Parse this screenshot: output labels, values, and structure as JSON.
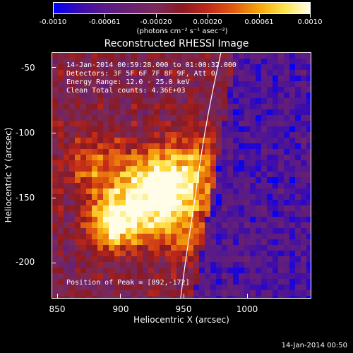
{
  "colorbar": {
    "tick_labels": [
      "-0.0010",
      "-0.00061",
      "-0.00020",
      "0.00020",
      "0.00061",
      "0.0010"
    ],
    "units": "(photons cm⁻² s⁻¹ asec⁻²)",
    "colors": [
      "#0000ff",
      "#3a0bb0",
      "#5a1b86",
      "#6a2070",
      "#7a2a5a",
      "#8a1a22",
      "#c0281a",
      "#e05a10",
      "#f5a40a",
      "#ffe34a",
      "#fffde8"
    ]
  },
  "plot": {
    "title": "Reconstructed RHESSI Image",
    "annotations": {
      "time": "14-Jan-2014 00:59:28.000 to 01:00:32.000",
      "detectors": "Detectors: 3F 5F 6F 7F 8F 9F, Att 0",
      "energy": "Energy Range: 12.0 - 25.0 keV",
      "method": "Clean    Total counts: 4.36E+03",
      "peak": "Position of Peak = [892,-172]"
    },
    "xlabel": "Heliocentric X (arcsec)",
    "ylabel": "Heliocentric Y (arcsec)",
    "x_ticks": [
      "850",
      "900",
      "950",
      "1000"
    ],
    "y_ticks": [
      "-50",
      "-100",
      "-150",
      "-200"
    ],
    "xlim": [
      848,
      1040
    ],
    "ylim": [
      -228,
      -40
    ],
    "peak": [
      892,
      -172
    ]
  },
  "footer": {
    "date": "14-Jan-2014 00:50"
  }
}
